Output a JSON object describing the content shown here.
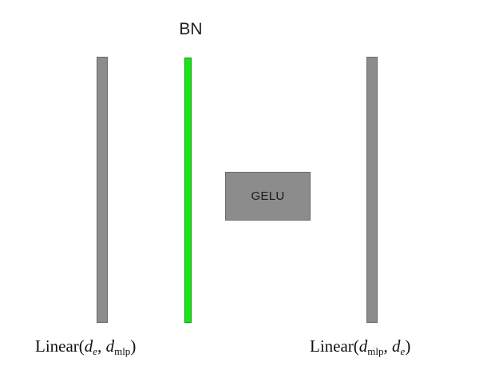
{
  "nodes": {
    "linear1": {
      "fn": "Linear",
      "arg1_var": "d",
      "arg1_sub": "e",
      "arg2_var": "d",
      "arg2_sub": "mlp"
    },
    "bn": {
      "label": "BN"
    },
    "gelu": {
      "label": "GELU"
    },
    "linear2": {
      "fn": "Linear",
      "arg1_var": "d",
      "arg1_sub": "mlp",
      "arg2_var": "d",
      "arg2_sub": "e"
    }
  },
  "colors": {
    "linear_layer": "#8c8c8c",
    "bn_layer": "#19e619",
    "activation": "#8c8c8c"
  }
}
